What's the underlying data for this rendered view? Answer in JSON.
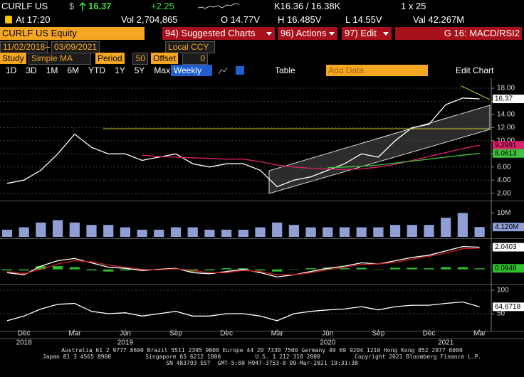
{
  "header": {
    "ticker": "CURLF US",
    "currency": "$",
    "last": "16.37",
    "change": "+2.25",
    "quote": "K16.36 / 16.38K",
    "size": "1 x 25",
    "time": "At 17:20",
    "volume": "Vol 2,704,865",
    "open": "O 14.77V",
    "high": "H 16.485V",
    "low": "L 14.55V",
    "value": "Val 42.267M",
    "security": "CURLF US Equity",
    "buttons": [
      "94) Suggested Charts",
      "96) Actions",
      "97) Edit"
    ],
    "template": "G 16: MACD/RSI2"
  },
  "toolbar": {
    "start_date": "11/02/2018",
    "end_date": "03/09/2021",
    "currency_mode": "Local CCY",
    "study_label": "Study",
    "study": "Simple MA",
    "period_label": "Period",
    "period": "50",
    "offset_label": "Offset",
    "offset": "0",
    "ranges": [
      "1D",
      "3D",
      "1M",
      "6M",
      "YTD",
      "1Y",
      "5Y",
      "Max"
    ],
    "frequency": "Weekly",
    "table": "Table",
    "add_data": "Add Data",
    "edit_chart": "Edit Chart"
  },
  "x_axis": {
    "categories": [
      null,
      "Dec",
      null,
      null,
      "Mar",
      null,
      null,
      "Jun",
      null,
      null,
      "Sep",
      null,
      null,
      "Dec",
      null,
      null,
      "Mar",
      null,
      null,
      "Jun",
      null,
      null,
      "Sep",
      null,
      null,
      "Dec",
      null,
      null,
      "Mar"
    ],
    "category_years": [
      null,
      "2018",
      null,
      null,
      null,
      null,
      null,
      "2019",
      null,
      null,
      null,
      null,
      null,
      null,
      null,
      null,
      null,
      null,
      null,
      "2020",
      null,
      null,
      null,
      null,
      null,
      null,
      "2021",
      null,
      null
    ]
  },
  "chart_data": [
    {
      "type": "line",
      "ylim": [
        1.1,
        19.3
      ],
      "yticks": [
        {
          "value": 2,
          "label": "2.00"
        },
        {
          "value": 4,
          "label": "4.00"
        },
        {
          "value": 6,
          "label": "6.00"
        },
        {
          "value": 8,
          "label": "8.00"
        },
        {
          "value": 10,
          "label": "10.00"
        },
        {
          "value": 12,
          "label": "12.00"
        },
        {
          "value": 14,
          "label": "14.00"
        },
        {
          "value": 16,
          "label": "16.00"
        },
        {
          "value": 18,
          "label": "18.00"
        }
      ],
      "grid": true,
      "series": [
        {
          "color": "#ffffff",
          "values": [
            3.5,
            4.0,
            5.5,
            8.0,
            11.0,
            9.0,
            8.0,
            8.0,
            7.0,
            7.5,
            8.0,
            6.5,
            6.0,
            6.5,
            6.5,
            5.5,
            3.0,
            4.0,
            4.5,
            5.5,
            6.5,
            8.0,
            7.5,
            10.0,
            12.0,
            12.5,
            15.5,
            16.5,
            16.37
          ],
          "value_labels": [
            null,
            null,
            null,
            null,
            null,
            null,
            null,
            null,
            null,
            null,
            null,
            null,
            null,
            null,
            null,
            null,
            null,
            null,
            null,
            null,
            null,
            null,
            null,
            null,
            null,
            null,
            null,
            null,
            "16.37"
          ]
        },
        {
          "color": "#e0206a",
          "values": [
            null,
            null,
            null,
            null,
            null,
            null,
            null,
            null,
            7.8,
            7.6,
            7.5,
            7.4,
            7.3,
            7.2,
            7.2,
            6.8,
            6.3,
            6.0,
            5.8,
            5.7,
            5.6,
            5.7,
            6.0,
            6.4,
            7.0,
            7.6,
            8.2,
            8.8,
            9.2991
          ],
          "value_labels": [
            null,
            null,
            null,
            null,
            null,
            null,
            null,
            null,
            null,
            null,
            null,
            null,
            null,
            null,
            null,
            null,
            null,
            null,
            null,
            null,
            null,
            null,
            null,
            null,
            null,
            null,
            null,
            null,
            "9.2991"
          ]
        },
        {
          "color": "#3ec43e",
          "values": [
            null,
            null,
            null,
            null,
            null,
            null,
            null,
            null,
            null,
            null,
            null,
            null,
            null,
            null,
            null,
            null,
            null,
            null,
            null,
            5.9,
            6.0,
            6.1,
            6.3,
            6.6,
            6.9,
            7.2,
            7.5,
            7.8,
            8.0613
          ],
          "value_labels": [
            null,
            null,
            null,
            null,
            null,
            null,
            null,
            null,
            null,
            null,
            null,
            null,
            null,
            null,
            null,
            null,
            null,
            null,
            null,
            null,
            null,
            null,
            null,
            null,
            null,
            null,
            null,
            null,
            "8.0613"
          ]
        }
      ]
    },
    {
      "type": "bar",
      "ylim": [
        0,
        14
      ],
      "yticks": [
        {
          "value": 10,
          "label": "10M"
        }
      ],
      "grid": false,
      "series": [
        {
          "color": "#8f9fd6",
          "values": [
            3,
            4,
            6,
            7,
            6,
            5,
            5,
            4,
            3,
            3,
            4,
            4,
            3,
            3,
            3,
            4,
            6,
            5,
            4,
            4,
            4,
            4,
            4,
            5,
            5,
            5,
            8,
            10,
            4.12
          ],
          "value_labels": [
            null,
            null,
            null,
            null,
            null,
            null,
            null,
            null,
            null,
            null,
            null,
            null,
            null,
            null,
            null,
            null,
            null,
            null,
            null,
            null,
            null,
            null,
            null,
            null,
            null,
            null,
            null,
            null,
            "4.120M"
          ]
        }
      ]
    },
    {
      "type": "line",
      "ylim": [
        -1.2,
        2.6
      ],
      "yticks": [],
      "grid": false,
      "series": [
        {
          "type": "bar",
          "color": "#2fbf2f",
          "values": [
            -0.1,
            -0.1,
            0.3,
            0.3,
            0.2,
            -0.1,
            -0.2,
            -0.1,
            -0.1,
            0.05,
            0.05,
            -0.2,
            -0.1,
            0.1,
            0.1,
            -0.1,
            -0.2,
            0,
            0.1,
            0.15,
            0.1,
            0.15,
            0,
            0.15,
            0.15,
            0.1,
            0.2,
            0.2,
            0.0948
          ],
          "value_labels": [
            null,
            null,
            null,
            null,
            null,
            null,
            null,
            null,
            null,
            null,
            null,
            null,
            null,
            null,
            null,
            null,
            null,
            null,
            null,
            null,
            null,
            null,
            null,
            null,
            null,
            null,
            null,
            null,
            "0.0948"
          ]
        },
        {
          "color": "#ffffff",
          "values": [
            -0.3,
            -0.5,
            0.3,
            0.8,
            1.0,
            0.6,
            0.2,
            0.1,
            -0.1,
            0.0,
            0.1,
            -0.3,
            -0.4,
            -0.2,
            0.0,
            -0.3,
            -0.7,
            -0.5,
            -0.2,
            0.1,
            0.3,
            0.6,
            0.5,
            0.8,
            1.1,
            1.3,
            1.7,
            2.1,
            2.0403
          ],
          "value_labels": [
            null,
            null,
            null,
            null,
            null,
            null,
            null,
            null,
            null,
            null,
            null,
            null,
            null,
            null,
            null,
            null,
            null,
            null,
            null,
            null,
            null,
            null,
            null,
            null,
            null,
            null,
            null,
            null,
            "2.0403"
          ]
        },
        {
          "color": "#d02020",
          "values": [
            -0.2,
            -0.4,
            0.0,
            0.5,
            0.8,
            0.7,
            0.4,
            0.2,
            0.0,
            -0.05,
            0.05,
            -0.1,
            -0.3,
            -0.3,
            -0.1,
            -0.2,
            -0.5,
            -0.5,
            -0.3,
            -0.05,
            0.2,
            0.45,
            0.5,
            0.65,
            0.95,
            1.2,
            1.5,
            1.9,
            1.9455
          ]
        }
      ]
    },
    {
      "type": "line",
      "ylim": [
        16.7,
        110.6
      ],
      "yticks": [
        100,
        50
      ],
      "grid": true,
      "series": [
        {
          "color": "#ffffff",
          "values": [
            35,
            45,
            60,
            70,
            72,
            55,
            50,
            52,
            45,
            50,
            55,
            45,
            45,
            50,
            50,
            45,
            35,
            50,
            55,
            58,
            60,
            65,
            58,
            65,
            68,
            68,
            72,
            75,
            64.6718
          ],
          "value_labels": [
            null,
            null,
            null,
            null,
            null,
            null,
            null,
            null,
            null,
            null,
            null,
            null,
            null,
            null,
            null,
            null,
            null,
            null,
            null,
            null,
            null,
            null,
            null,
            null,
            null,
            null,
            null,
            null,
            "64.6718"
          ]
        }
      ]
    }
  ],
  "footer": [
    "Australia 61 2 9777 8600 Brazil 5511 2395 9000 Europe 44 20 7330 7500 Germany 49 69 9204 1210 Hong Kong 852 2977 6000",
    "Japan 81 3 4565 8900          Singapore 65 6212 1000          U.S. 1 212 318 2000          Copyright 2021 Bloomberg Finance L.P.",
    "SN 483793 EST  GMT-5:00 H947-3753-0 09-Mar-2021 19:31:38"
  ]
}
